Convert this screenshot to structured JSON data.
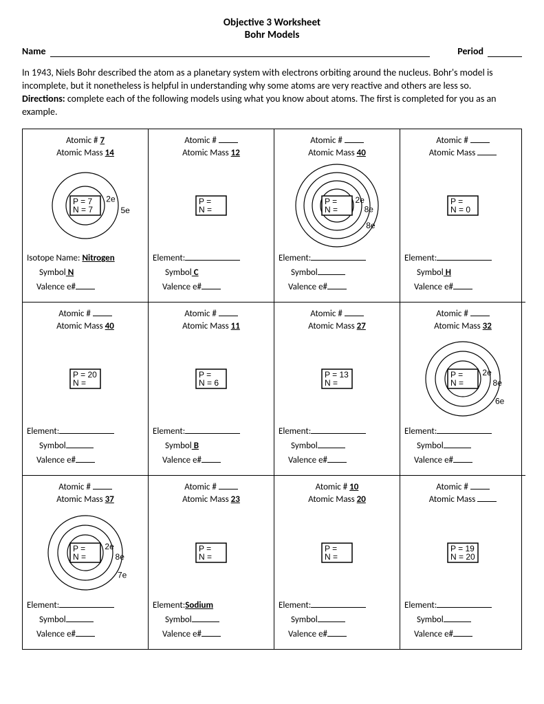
{
  "header": {
    "title": "Objective 3 Worksheet",
    "subtitle": "Bohr Models",
    "name_label": "Name",
    "period_label": "Period"
  },
  "intro": {
    "p1": "In 1943, Niels Bohr described the atom as a planetary system with electrons orbiting around the nucleus. Bohr's model is incomplete, but it nonetheless is helpful in understanding why some atoms are very reactive and others are less so.",
    "dir_label": "Directions:",
    "dir_text": " complete each of the following models using what you know about atoms. The first is completed for you as an example."
  },
  "labels": {
    "atomic_num": "Atomic #",
    "atomic_mass": "Atomic Mass",
    "isotope_name": "Isotope Name:",
    "element": "Element:",
    "symbol": "Symbol",
    "valence": "Valence e#",
    "p": "P =",
    "n": "N ="
  },
  "style": {
    "ring_stroke": "#000000",
    "ring_stroke_width": 1.2,
    "box_border": "#000000",
    "electron_font": "Arial",
    "electron_fontsize": 12
  },
  "cells": [
    {
      "atomic_num": "7",
      "atomic_num_bold": true,
      "atomic_mass": "14",
      "atomic_mass_bold": true,
      "diagram": {
        "rings": [
          28,
          48
        ],
        "p": "7",
        "n": "7",
        "electrons": [
          {
            "r": 28,
            "label": "2e"
          },
          {
            "r": 48,
            "label": "5e"
          }
        ]
      },
      "iso_label": true,
      "iso_name": "Nitrogen",
      "symbol": "N",
      "symbol_u": true,
      "valence": ""
    },
    {
      "atomic_num": "",
      "atomic_mass": "12",
      "atomic_mass_u": true,
      "diagram": {
        "rings": [],
        "p": "",
        "n": "",
        "electrons": []
      },
      "element": "",
      "symbol": "C",
      "symbol_u": true,
      "valence": ""
    },
    {
      "atomic_num": "",
      "atomic_mass": "40",
      "atomic_mass_u": true,
      "diagram": {
        "rings": [
          24,
          36,
          48,
          60
        ],
        "p": "",
        "n": "",
        "electrons": [
          {
            "r": 24,
            "label": "2e"
          },
          {
            "r": 36,
            "label": "8e"
          },
          {
            "r": 48,
            "label": "8e"
          }
        ]
      },
      "element": "",
      "symbol": "",
      "valence": ""
    },
    {
      "atomic_num": "",
      "atomic_mass": "",
      "diagram": {
        "rings": [],
        "p": "",
        "n": "0",
        "n_bold": true,
        "electrons": []
      },
      "element": "",
      "symbol": "H",
      "symbol_u": true,
      "valence": ""
    },
    {
      "atomic_num": "",
      "atomic_mass": "40",
      "atomic_mass_u": true,
      "diagram": {
        "rings": [],
        "p": "20",
        "p_bold": true,
        "n": "",
        "electrons": []
      },
      "element": "",
      "symbol": "",
      "valence": ""
    },
    {
      "atomic_num": "",
      "atomic_mass": "11",
      "atomic_mass_u": true,
      "diagram": {
        "rings": [],
        "p": "",
        "n": "6",
        "n_bold": true,
        "electrons": []
      },
      "element": "",
      "symbol": "B",
      "symbol_u": true,
      "valence": ""
    },
    {
      "atomic_num": "",
      "atomic_mass": "27",
      "atomic_mass_u": true,
      "diagram": {
        "rings": [],
        "p": "13",
        "p_bold": true,
        "n": "",
        "electrons": []
      },
      "element": "",
      "symbol": "",
      "valence": ""
    },
    {
      "atomic_num": "",
      "atomic_mass": "32",
      "atomic_mass_u": true,
      "diagram": {
        "rings": [
          26,
          40,
          54
        ],
        "p": "",
        "n": "",
        "electrons": [
          {
            "r": 26,
            "label": "2e"
          },
          {
            "r": 40,
            "label": "8e"
          },
          {
            "r": 54,
            "label": "6e"
          }
        ]
      },
      "element": "",
      "symbol": "",
      "valence": ""
    },
    {
      "atomic_num": "",
      "atomic_mass": "37",
      "atomic_mass_u": true,
      "diagram": {
        "rings": [
          26,
          40,
          54
        ],
        "p": "",
        "n": "",
        "electrons": [
          {
            "r": 26,
            "label": "2e"
          },
          {
            "r": 40,
            "label": "8e"
          },
          {
            "r": 54,
            "label": "7e"
          }
        ]
      },
      "element": "",
      "symbol": "",
      "valence": ""
    },
    {
      "atomic_num": "",
      "atomic_mass": "23",
      "atomic_mass_u": true,
      "diagram": {
        "rings": [],
        "p": "",
        "n": "",
        "electrons": []
      },
      "element": "Sodium",
      "element_bold": true,
      "symbol": "",
      "valence": ""
    },
    {
      "atomic_num": "10",
      "atomic_num_u": true,
      "atomic_mass": "20",
      "atomic_mass_u": true,
      "diagram": {
        "rings": [],
        "p": "",
        "n": "",
        "electrons": []
      },
      "element": "",
      "symbol": "",
      "valence": ""
    },
    {
      "atomic_num": "",
      "atomic_mass": "",
      "diagram": {
        "rings": [],
        "p": "19",
        "p_bold": true,
        "n": "20",
        "n_bold": true,
        "electrons": []
      },
      "element": "",
      "symbol": "",
      "valence": ""
    }
  ]
}
